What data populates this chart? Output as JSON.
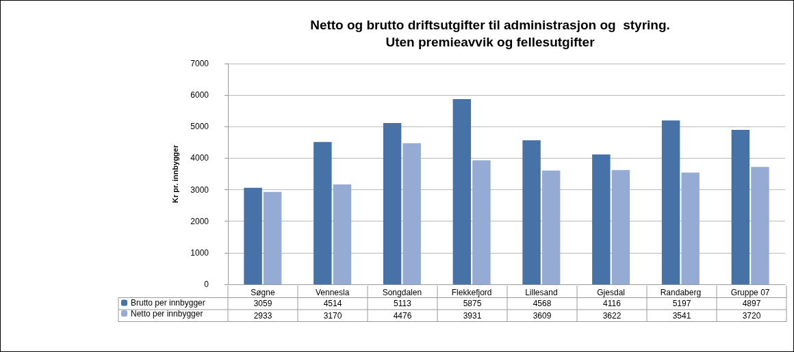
{
  "chart_data": {
    "type": "bar",
    "title": "Netto og brutto driftsutgifter til administrasjon og  styring.\nUten premieavvik og fellesutgifter",
    "ylabel": "Kr pr. innbygger",
    "categories": [
      "Søgne",
      "Vennesla",
      "Songdalen",
      "Flekkefjord",
      "Lillesand",
      "Gjesdal",
      "Randaberg",
      "Gruppe 07"
    ],
    "series": [
      {
        "name": "Brutto per innbygger",
        "color": "#4672a8",
        "values": [
          3059,
          4514,
          5113,
          5875,
          4568,
          4116,
          5197,
          4897
        ]
      },
      {
        "name": "Netto per innbygger",
        "color": "#95abd3",
        "values": [
          2933,
          3170,
          4476,
          3931,
          3609,
          3622,
          3541,
          3720
        ]
      }
    ],
    "ylim": [
      0,
      7000
    ],
    "yticks": [
      0,
      1000,
      2000,
      3000,
      4000,
      5000,
      6000,
      7000
    ],
    "grid": "y",
    "legend": "bottom",
    "data_labels": true
  }
}
